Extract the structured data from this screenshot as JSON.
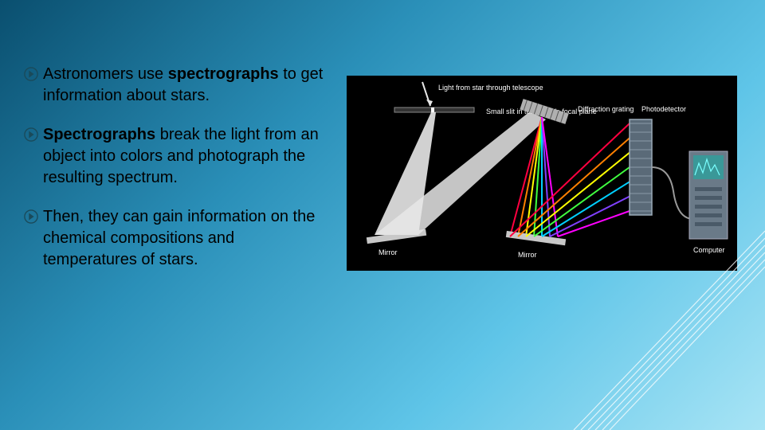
{
  "bullets": [
    {
      "parts": [
        {
          "text": "Astronomers use ",
          "bold": false
        },
        {
          "text": "spectrographs",
          "bold": true
        },
        {
          "text": " to get information about stars.",
          "bold": false
        }
      ]
    },
    {
      "parts": [
        {
          "text": "Spectrographs",
          "bold": true
        },
        {
          "text": " break the light from an object into colors and photograph the resulting spectrum.",
          "bold": false
        }
      ]
    },
    {
      "parts": [
        {
          "text": "Then, they can gain information on the chemical compositions and temperatures of stars.",
          "bold": false
        }
      ]
    }
  ],
  "bullet_icon_color": "#1a4a5a",
  "diagram": {
    "background": "#000000",
    "labels": {
      "top": "Light from star through telescope",
      "slit": "Small slit in telescope's focal plane",
      "grating": "Diffraction grating",
      "detector": "Photodetector",
      "mirror": "Mirror",
      "computer": "Computer"
    },
    "light_path_color": "#e8e8e8",
    "mirror_color": "#c8c8c8",
    "grating_color": "#b0b0b0",
    "spectrum_colors": [
      "#ff0040",
      "#ff8000",
      "#ffff00",
      "#40ff40",
      "#00d0ff",
      "#8040ff",
      "#ff00ff"
    ],
    "detector_fill": "#5a6a78",
    "detector_border": "#9aaab8",
    "computer_fill": "#6a7a88",
    "computer_screen": "#3a9898",
    "graph_color": "#7affff"
  },
  "decoration": {
    "line_color": "#ffffff",
    "line_opacity": 0.75,
    "line_count": 6
  }
}
